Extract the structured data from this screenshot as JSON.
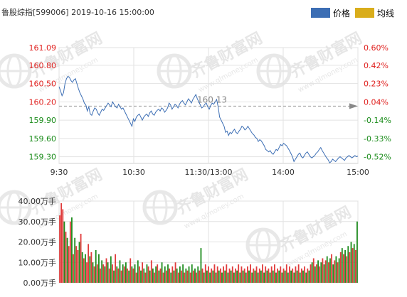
{
  "header": {
    "title": "鲁股综指[599006] 2019-10-16 15:00:00"
  },
  "legend": [
    {
      "label": "价格",
      "color": "#3c6eb4"
    },
    {
      "label": "均线",
      "color": "#d9ad1b"
    }
  ],
  "watermark": {
    "brand_cn": "齐鲁财富网",
    "brand_url": "www.qlmoney.com"
  },
  "chart_data": [
    {
      "type": "line",
      "title": "",
      "y_left_ticks": [
        "161.09",
        "160.80",
        "160.50",
        "160.20",
        "159.90",
        "159.60",
        "159.30"
      ],
      "y_right_ticks": [
        "0.60%",
        "0.42%",
        "0.23%",
        "0.04%",
        "-0.14%",
        "-0.33%",
        "-0.52%"
      ],
      "x_ticks": [
        "9:30",
        "10:30",
        "11:30/13:00",
        "14:00",
        "15:00"
      ],
      "ylim": [
        159.19,
        161.09
      ],
      "prev_close": 160.13,
      "prev_close_label": "160.13",
      "series": [
        {
          "values": [
            160.45,
            160.38,
            160.3,
            160.35,
            160.5,
            160.58,
            160.62,
            160.6,
            160.55,
            160.52,
            160.56,
            160.58,
            160.5,
            160.42,
            160.35,
            160.3,
            160.25,
            160.18,
            160.15,
            160.05,
            160.12,
            160.0,
            159.98,
            160.05,
            160.1,
            160.08,
            160.02,
            159.98,
            160.03,
            160.08,
            160.06,
            160.1,
            160.14,
            160.18,
            160.15,
            160.12,
            160.2,
            160.16,
            160.12,
            160.1,
            160.16,
            160.12,
            160.08,
            160.1,
            160.05,
            160.0,
            159.95,
            159.9,
            159.85,
            159.8,
            159.92,
            159.88,
            159.95,
            159.98,
            160.0,
            159.95,
            159.9,
            159.95,
            159.98,
            160.0,
            159.96,
            160.02,
            160.05,
            160.0,
            159.98,
            160.03,
            160.06,
            160.08,
            160.05,
            160.1,
            160.08,
            160.03,
            160.06,
            160.1,
            160.18,
            160.15,
            160.08,
            160.12,
            160.16,
            160.14,
            160.1,
            160.16,
            160.2,
            160.22,
            160.18,
            160.15,
            160.2,
            160.25,
            160.22,
            160.18,
            160.24,
            160.28,
            160.32,
            160.25,
            160.2,
            160.15,
            160.1,
            160.12,
            160.16,
            160.18,
            160.12,
            160.08,
            160.14,
            160.18,
            160.16,
            160.2,
            160.24,
            160.12,
            159.95,
            159.9,
            159.85,
            159.8,
            159.7,
            159.72,
            159.65,
            159.7,
            159.68,
            159.72,
            159.75,
            159.7,
            159.68,
            159.72,
            159.75,
            159.8,
            159.78,
            159.74,
            159.76,
            159.8,
            159.76,
            159.72,
            159.68,
            159.66,
            159.62,
            159.6,
            159.55,
            159.58,
            159.56,
            159.52,
            159.48,
            159.42,
            159.4,
            159.38,
            159.4,
            159.36,
            159.34,
            159.38,
            159.42,
            159.4,
            159.45,
            159.5,
            159.48,
            159.52,
            159.5,
            159.48,
            159.44,
            159.4,
            159.35,
            159.3,
            159.22,
            159.26,
            159.3,
            159.34,
            159.36,
            159.3,
            159.28,
            159.32,
            159.36,
            159.38,
            159.34,
            159.3,
            159.28,
            159.3,
            159.32,
            159.36,
            159.38,
            159.42,
            159.45,
            159.4,
            159.36,
            159.32,
            159.28,
            159.25,
            159.2,
            159.22,
            159.26,
            159.24,
            159.22,
            159.25,
            159.28,
            159.3,
            159.28,
            159.26,
            159.24,
            159.28,
            159.3,
            159.32,
            159.3,
            159.28,
            159.3,
            159.32,
            159.3,
            159.31
          ]
        }
      ]
    },
    {
      "type": "bar",
      "title": "",
      "y_ticks": [
        "40.00万手",
        "30.00万手",
        "20.00万手",
        "10.00万手",
        "0.00万手"
      ],
      "ylim": [
        0,
        40
      ],
      "unit": "万手",
      "up_color": "#e03c3c",
      "down_color": "#1e8c1e",
      "values": [
        33,
        39,
        36,
        30,
        25,
        22,
        18,
        30,
        32,
        14,
        22,
        18,
        16,
        20,
        24,
        15,
        12,
        14,
        10,
        19,
        13,
        15,
        10,
        8,
        16,
        9,
        14,
        7,
        11,
        9,
        8,
        12,
        10,
        7,
        13,
        9,
        6,
        14,
        8,
        7,
        11,
        6,
        9,
        8,
        10,
        7,
        6,
        12,
        8,
        7,
        9,
        5,
        11,
        8,
        6,
        10,
        7,
        5,
        9,
        8,
        6,
        11,
        7,
        5,
        8,
        9,
        6,
        7,
        10,
        5,
        8,
        6,
        9,
        7,
        5,
        8,
        6,
        10,
        7,
        5,
        8,
        6,
        9,
        5,
        7,
        6,
        8,
        5,
        9,
        6,
        7,
        5,
        8,
        6,
        17,
        7,
        5,
        9,
        6,
        8,
        5,
        7,
        6,
        9,
        5,
        8,
        6,
        7,
        5,
        8,
        6,
        9,
        5,
        7,
        6,
        8,
        5,
        7,
        6,
        9,
        5,
        8,
        6,
        7,
        5,
        8,
        6,
        9,
        5,
        7,
        6,
        8,
        5,
        7,
        6,
        9,
        5,
        8,
        6,
        7,
        5,
        8,
        6,
        9,
        5,
        7,
        6,
        8,
        5,
        7,
        6,
        9,
        5,
        8,
        6,
        7,
        5,
        8,
        6,
        9,
        5,
        7,
        6,
        8,
        5,
        7,
        6,
        9,
        10,
        12,
        8,
        9,
        11,
        8,
        10,
        12,
        9,
        11,
        13,
        10,
        12,
        14,
        9,
        11,
        13,
        10,
        12,
        15,
        17,
        14,
        16,
        13,
        18,
        15,
        20,
        17,
        19,
        16,
        30
      ],
      "colors": [
        "u",
        "u",
        "u",
        "d",
        "u",
        "d",
        "u",
        "u",
        "d",
        "u",
        "d",
        "u",
        "u",
        "d",
        "u",
        "d",
        "u",
        "d",
        "u",
        "u",
        "d",
        "u",
        "d",
        "u",
        "d",
        "u",
        "d",
        "u",
        "d",
        "u",
        "d",
        "u",
        "d",
        "u",
        "d",
        "u",
        "d",
        "u",
        "d",
        "u",
        "d",
        "u",
        "d",
        "u",
        "d",
        "u",
        "d",
        "u",
        "d",
        "u",
        "d",
        "u",
        "d",
        "u",
        "d",
        "u",
        "d",
        "u",
        "d",
        "u",
        "d",
        "u",
        "d",
        "u",
        "d",
        "u",
        "d",
        "u",
        "d",
        "u",
        "d",
        "u",
        "d",
        "u",
        "d",
        "u",
        "d",
        "u",
        "d",
        "u",
        "d",
        "u",
        "d",
        "u",
        "d",
        "u",
        "d",
        "u",
        "d",
        "u",
        "d",
        "u",
        "d",
        "u",
        "d",
        "u",
        "d",
        "u",
        "d",
        "u",
        "d",
        "u",
        "d",
        "u",
        "d",
        "u",
        "d",
        "u",
        "d",
        "u",
        "d",
        "u",
        "d",
        "u",
        "d",
        "u",
        "d",
        "u",
        "d",
        "u",
        "d",
        "u",
        "d",
        "u",
        "d",
        "u",
        "d",
        "u",
        "d",
        "u",
        "d",
        "u",
        "d",
        "u",
        "d",
        "u",
        "d",
        "u",
        "d",
        "u",
        "d",
        "u",
        "d",
        "u",
        "d",
        "u",
        "d",
        "u",
        "d",
        "u",
        "d",
        "u",
        "d",
        "u",
        "d",
        "u",
        "d",
        "u",
        "d",
        "u",
        "d",
        "u",
        "d",
        "u",
        "d",
        "u",
        "d",
        "u",
        "d",
        "u",
        "d",
        "u",
        "d",
        "u",
        "d",
        "u",
        "d",
        "u",
        "d",
        "u",
        "d",
        "u",
        "d",
        "u",
        "d",
        "u",
        "d",
        "u",
        "d",
        "u",
        "d",
        "u",
        "d",
        "u",
        "d",
        "u",
        "d",
        "u",
        "d",
        "u",
        "d",
        "u",
        "d",
        "u",
        "d",
        "d"
      ]
    }
  ]
}
